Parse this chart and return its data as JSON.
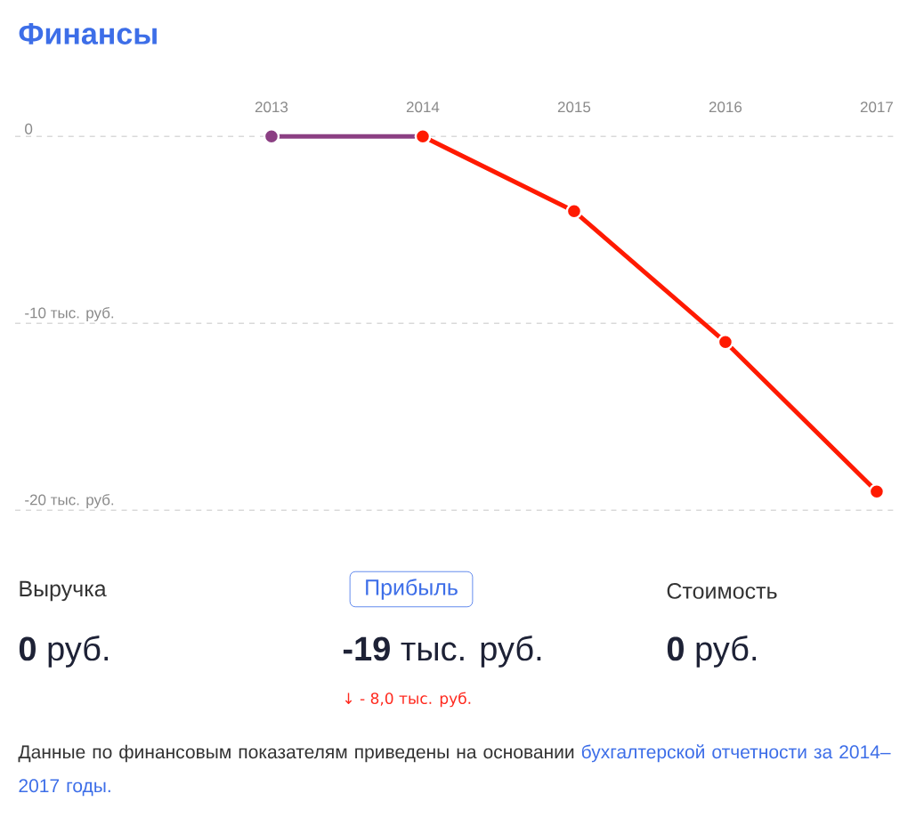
{
  "chart_data": {
    "type": "line",
    "title": "Финансы",
    "categories": [
      "2013",
      "2014",
      "2015",
      "2016",
      "2017"
    ],
    "series": [
      {
        "color": "#8b3f83",
        "values": [
          0,
          0,
          null,
          null,
          null
        ]
      },
      {
        "color": "#ff1a00",
        "values": [
          null,
          0,
          -4,
          -11,
          -19
        ]
      }
    ],
    "ylim": [
      -20,
      0
    ],
    "yticks": [
      0,
      {
        "value": -10,
        "label": "-10 тыс. руб."
      },
      {
        "value": -20,
        "label": "-20 тыс. руб."
      }
    ],
    "grid": "y",
    "marker": "circle",
    "line_style": "solid",
    "annotations": [
      "Выручка",
      "**0** руб.",
      "Прибыль",
      "**-19** тыс. руб.",
      "↓ - 8,0 тыс. руб.",
      "Стоимость",
      "**0** руб.",
      "Данные по финансовым показателям приведены на основании",
      "бухгалтерской отчетности за 2014–2017 годы."
    ]
  }
}
